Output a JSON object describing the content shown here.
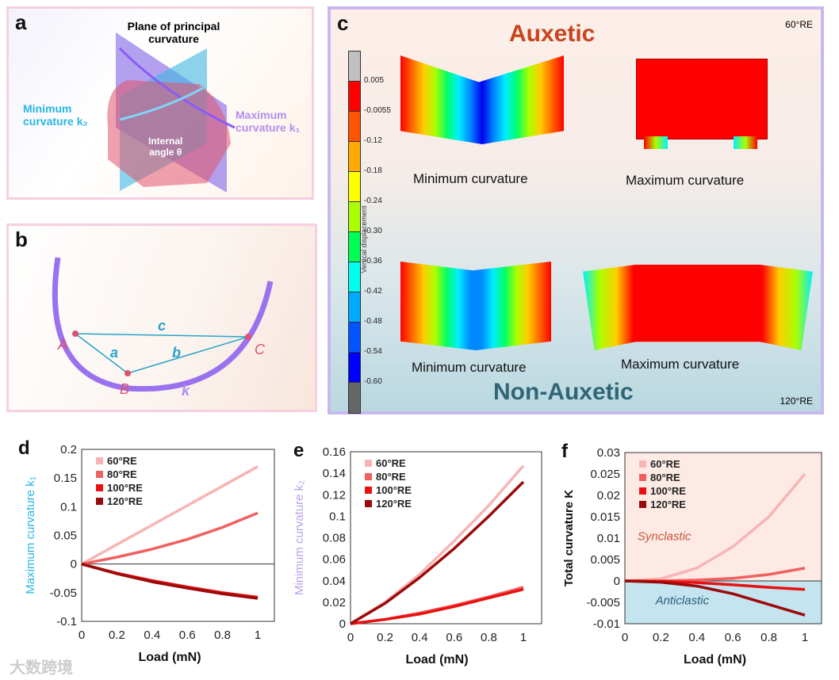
{
  "panels": {
    "a": {
      "label": "a",
      "title_line1": "Plane of principal",
      "title_line2": "curvature",
      "min_line1": "Minimum",
      "min_line2": "curvature k₂",
      "max_line1": "Maximum",
      "max_line2": "curvature k₁",
      "angle_line1": "Internal",
      "angle_line2": "angle θ"
    },
    "b": {
      "label": "b",
      "points": [
        "A",
        "B",
        "C"
      ],
      "segments": [
        "a",
        "b",
        "c"
      ],
      "curve": "k"
    },
    "c": {
      "label": "c",
      "top_title": "Auxetic",
      "bottom_title": "Non-Auxetic",
      "top_angle": "60°RE",
      "bottom_angle": "120°RE",
      "captions": [
        "Minimum curvature",
        "Maximum curvature",
        "Minimum curvature",
        "Maximum curvature"
      ],
      "colorbar": {
        "title": "Vertical displacement",
        "ticks": [
          "0.005",
          "-0.0055",
          "-0.12",
          "-0.18",
          "-0.24",
          "-0.30",
          "-0.36",
          "-0.42",
          "-0.48",
          "-0.54",
          "-0.60"
        ],
        "colors": [
          "#c0c0c0",
          "#ff0000",
          "#ff5500",
          "#ffaa00",
          "#ffff00",
          "#aaff00",
          "#00ff55",
          "#00ffee",
          "#00aaff",
          "#0055ff",
          "#0000ff",
          "#666666"
        ]
      }
    }
  },
  "series_colors": {
    "60°RE": "#f8b4b4",
    "80°RE": "#f06060",
    "100°RE": "#e81010",
    "120°RE": "#9b0a0a"
  },
  "chart_data": [
    {
      "label": "d",
      "type": "line",
      "xlabel": "Load (mN)",
      "ylabel": "Maximum curvature k₁",
      "ylabel_color": "#29b6e6",
      "xlim": [
        0,
        1
      ],
      "ylim": [
        -0.1,
        0.2
      ],
      "xticks": [
        "0",
        "0.2",
        "0.4",
        "0.6",
        "0.8",
        "1"
      ],
      "yticks": [
        "-0.1",
        "-0.05",
        "0",
        "0.05",
        "0.1",
        "0.15",
        "0.2"
      ],
      "legend": "top-left",
      "x": [
        0,
        0.2,
        0.4,
        0.6,
        0.8,
        1
      ],
      "series": [
        {
          "name": "60°RE",
          "values": [
            0,
            0.034,
            0.068,
            0.102,
            0.136,
            0.17
          ]
        },
        {
          "name": "80°RE",
          "values": [
            0,
            0.012,
            0.026,
            0.043,
            0.064,
            0.089
          ]
        },
        {
          "name": "100°RE",
          "values": [
            0,
            -0.016,
            -0.029,
            -0.04,
            -0.05,
            -0.058
          ]
        },
        {
          "name": "120°RE",
          "values": [
            0,
            -0.017,
            -0.031,
            -0.042,
            -0.052,
            -0.06
          ]
        }
      ]
    },
    {
      "label": "e",
      "type": "line",
      "xlabel": "Load (mN)",
      "ylabel": "Minimum curvature k₂",
      "ylabel_color": "#b9a0ec",
      "xlim": [
        0,
        1
      ],
      "ylim": [
        0,
        0.16
      ],
      "xticks": [
        "0",
        "0.2",
        "0.4",
        "0.6",
        "0.8",
        "1"
      ],
      "yticks": [
        "0",
        "0.02",
        "0.04",
        "0.06",
        "0.08",
        "0.1",
        "0.12",
        "0.14",
        "0.16"
      ],
      "legend": "top-left",
      "x": [
        0,
        0.2,
        0.4,
        0.6,
        0.8,
        1
      ],
      "series": [
        {
          "name": "60°RE",
          "values": [
            0,
            0.02,
            0.046,
            0.077,
            0.11,
            0.147
          ]
        },
        {
          "name": "80°RE",
          "values": [
            0,
            0.004,
            0.01,
            0.017,
            0.025,
            0.034
          ]
        },
        {
          "name": "100°RE",
          "values": [
            0,
            0.004,
            0.009,
            0.016,
            0.024,
            0.032
          ]
        },
        {
          "name": "120°RE",
          "values": [
            0,
            0.019,
            0.043,
            0.07,
            0.1,
            0.132
          ]
        }
      ]
    },
    {
      "label": "f",
      "type": "line",
      "xlabel": "Load (mN)",
      "ylabel": "Total curvature K",
      "ylabel_color": "#111111",
      "xlim": [
        0,
        1
      ],
      "ylim": [
        -0.01,
        0.03
      ],
      "xticks": [
        "0",
        "0.2",
        "0.4",
        "0.6",
        "0.8",
        "1"
      ],
      "yticks": [
        "-0.01",
        "-0.005",
        "0",
        "0.005",
        "0.01",
        "0.015",
        "0.02",
        "0.025",
        "0.03"
      ],
      "legend": "top-left",
      "regions": [
        {
          "name": "Synclastic",
          "color": "#fdeae4",
          "text_color": "#c8553a"
        },
        {
          "name": "Anticlastic",
          "color": "#c4e4f0",
          "text_color": "#2a5f78"
        }
      ],
      "x": [
        0,
        0.2,
        0.4,
        0.6,
        0.8,
        1
      ],
      "series": [
        {
          "name": "60°RE",
          "values": [
            0,
            0.0005,
            0.003,
            0.008,
            0.015,
            0.025
          ]
        },
        {
          "name": "80°RE",
          "values": [
            0,
            0,
            0.0002,
            0.0006,
            0.0015,
            0.003
          ]
        },
        {
          "name": "100°RE",
          "values": [
            0,
            -0.0001,
            -0.0004,
            -0.0009,
            -0.0015,
            -0.002
          ]
        },
        {
          "name": "120°RE",
          "values": [
            0,
            -0.0003,
            -0.0012,
            -0.003,
            -0.0055,
            -0.008
          ]
        }
      ]
    }
  ],
  "watermark": "大数跨境"
}
